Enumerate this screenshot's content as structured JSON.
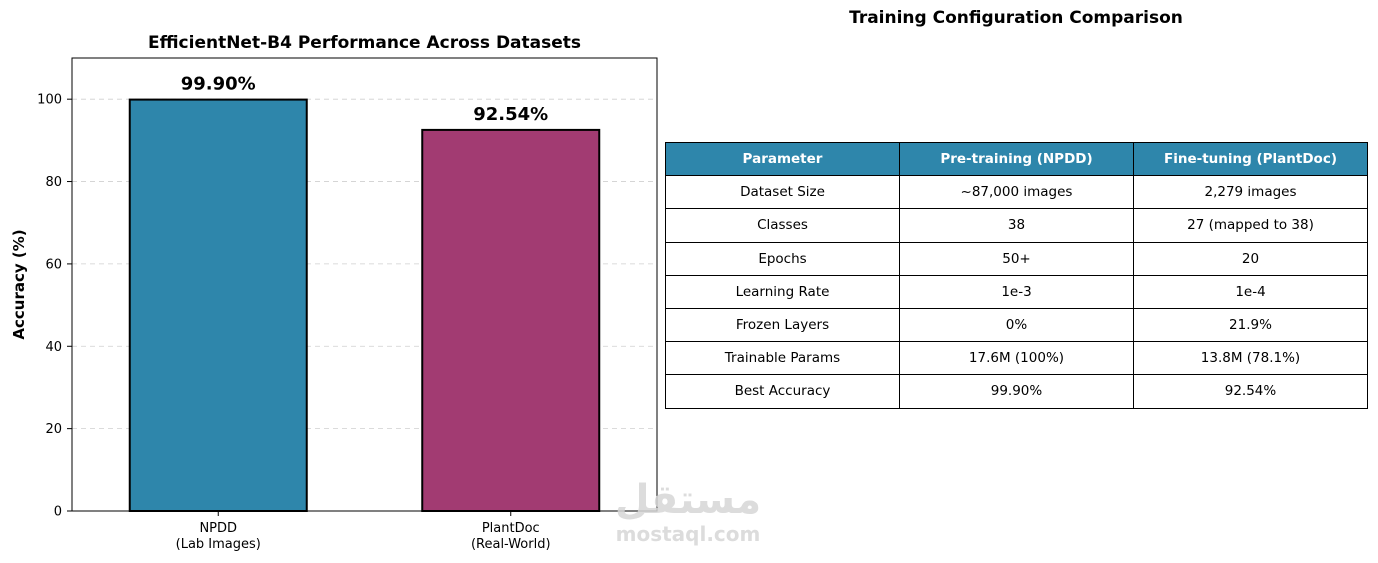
{
  "chart_data": {
    "type": "bar",
    "title": "EfficientNet-B4 Performance Across Datasets",
    "ylabel": "Accuracy (%)",
    "xlabel": "",
    "ylim": [
      0,
      110
    ],
    "yticks": [
      0,
      20,
      40,
      60,
      80,
      100
    ],
    "grid": "y-dashed",
    "categories": [
      [
        "NPDD",
        "(Lab Images)"
      ],
      [
        "PlantDoc",
        "(Real-World)"
      ]
    ],
    "values": [
      99.9,
      92.54
    ],
    "value_labels": [
      "99.90%",
      "92.54%"
    ],
    "colors": [
      "#2e86ab",
      "#a23b72"
    ]
  },
  "table": {
    "title": "Training Configuration Comparison",
    "header_color": "#2e86ab",
    "columns": [
      "Parameter",
      "Pre-training (NPDD)",
      "Fine-tuning (PlantDoc)"
    ],
    "rows": [
      [
        "Dataset Size",
        "~87,000 images",
        "2,279 images"
      ],
      [
        "Classes",
        "38",
        "27 (mapped to 38)"
      ],
      [
        "Epochs",
        "50+",
        "20"
      ],
      [
        "Learning Rate",
        "1e-3",
        "1e-4"
      ],
      [
        "Frozen Layers",
        "0%",
        "21.9%"
      ],
      [
        "Trainable Params",
        "17.6M (100%)",
        "13.8M (78.1%)"
      ],
      [
        "Best Accuracy",
        "99.90%",
        "92.54%"
      ]
    ]
  },
  "watermark": {
    "arabic": "مستقل",
    "latin": "mostaql.com"
  }
}
